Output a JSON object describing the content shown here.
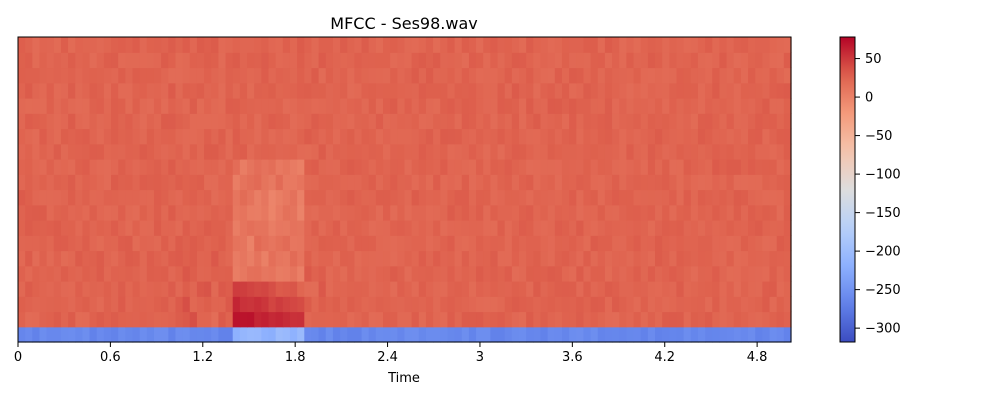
{
  "chart_data": {
    "type": "heatmap",
    "title": "MFCC - Ses98.wav",
    "xlabel": "Time",
    "ylabel": "",
    "xlim": [
      0,
      5.02
    ],
    "x_ticks": [
      0,
      0.6,
      1.2,
      1.8,
      2.4,
      3,
      3.6,
      4.2,
      4.8
    ],
    "x_tick_labels": [
      "0",
      "0.6",
      "1.2",
      "1.8",
      "2.4",
      "3",
      "3.6",
      "4.2",
      "4.8"
    ],
    "n_coefficients": 20,
    "n_frames": 108,
    "colormap": "coolwarm",
    "colorbar": {
      "vmin": -318,
      "vmax": 78,
      "ticks": [
        50,
        0,
        -50,
        -100,
        -150,
        -200,
        -250,
        -300
      ],
      "tick_labels": [
        "50",
        "0",
        "−50",
        "−100",
        "−150",
        "−200",
        "−250",
        "−300"
      ]
    },
    "baseline_value": 25,
    "coefficient_0_value": -262,
    "bright_region": {
      "time_range": [
        1.4,
        1.85
      ],
      "coefficient_range": [
        1,
        3
      ],
      "peak_value": 70
    },
    "grid": false
  }
}
